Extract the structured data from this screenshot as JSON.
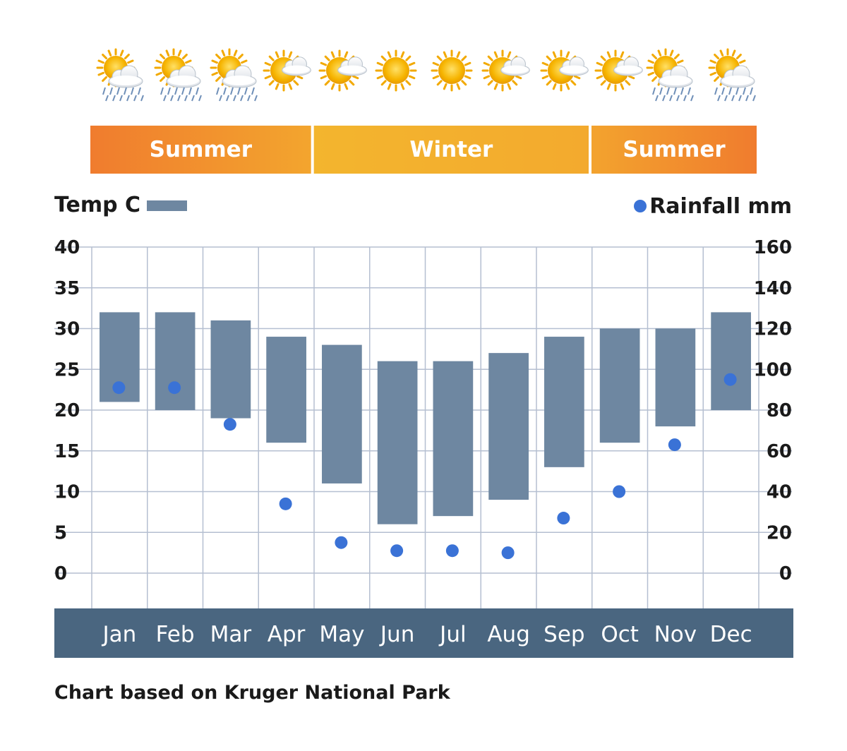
{
  "weather_icons": [
    "sun-rain-icon",
    "sun-rain-icon",
    "sun-rain-icon",
    "sun-cloud-icon",
    "sun-cloud-icon",
    "sun-icon",
    "sun-icon",
    "sun-cloud-icon",
    "sun-cloud-icon",
    "sun-cloud-icon",
    "sun-rain-icon",
    "sun-rain-icon"
  ],
  "seasons": [
    {
      "label": "Summer",
      "start": 0,
      "end": 4,
      "colors": [
        "#f07c2e",
        "#f3a52e"
      ]
    },
    {
      "label": "Winter",
      "start": 4,
      "end": 9,
      "colors": [
        "#f3b52e",
        "#f3aa2e"
      ]
    },
    {
      "label": "Summer",
      "start": 9,
      "end": 12,
      "colors": [
        "#f3a32e",
        "#f07c2e"
      ]
    }
  ],
  "legend": {
    "temp_label": "Temp C",
    "rain_label": "Rainfall mm"
  },
  "colors": {
    "bar": "#6e87a1",
    "dot": "#3a72d6",
    "grid": "#b5bfd1",
    "month_band": "#4a6680",
    "month_text": "#ffffff"
  },
  "footer": "Chart based on Kruger National Park",
  "chart_data": {
    "type": "bar",
    "categories": [
      "Jan",
      "Feb",
      "Mar",
      "Apr",
      "May",
      "Jun",
      "Jul",
      "Aug",
      "Sep",
      "Oct",
      "Nov",
      "Dec"
    ],
    "series": [
      {
        "name": "Temp C",
        "type": "floating-bar",
        "low": [
          21,
          20,
          19,
          16,
          11,
          6,
          7,
          9,
          13,
          16,
          18,
          20
        ],
        "high": [
          32,
          32,
          31,
          29,
          28,
          26,
          26,
          27,
          29,
          30,
          30,
          32
        ]
      },
      {
        "name": "Rainfall mm",
        "type": "scatter",
        "axis": "right",
        "values": [
          91,
          91,
          73,
          34,
          15,
          11,
          11,
          10,
          27,
          40,
          63,
          95
        ]
      }
    ],
    "y_left": {
      "label": "Temp C",
      "range": [
        0,
        40
      ],
      "ticks": [
        "0",
        "5",
        "10",
        "15",
        "20",
        "25",
        "30",
        "35",
        "40"
      ]
    },
    "y_right": {
      "label": "Rainfall mm",
      "range": [
        0,
        160
      ],
      "ticks": [
        "0",
        "20",
        "40",
        "60",
        "80",
        "100",
        "120",
        "140",
        "160"
      ]
    },
    "grid": true,
    "legend_position": "top"
  }
}
